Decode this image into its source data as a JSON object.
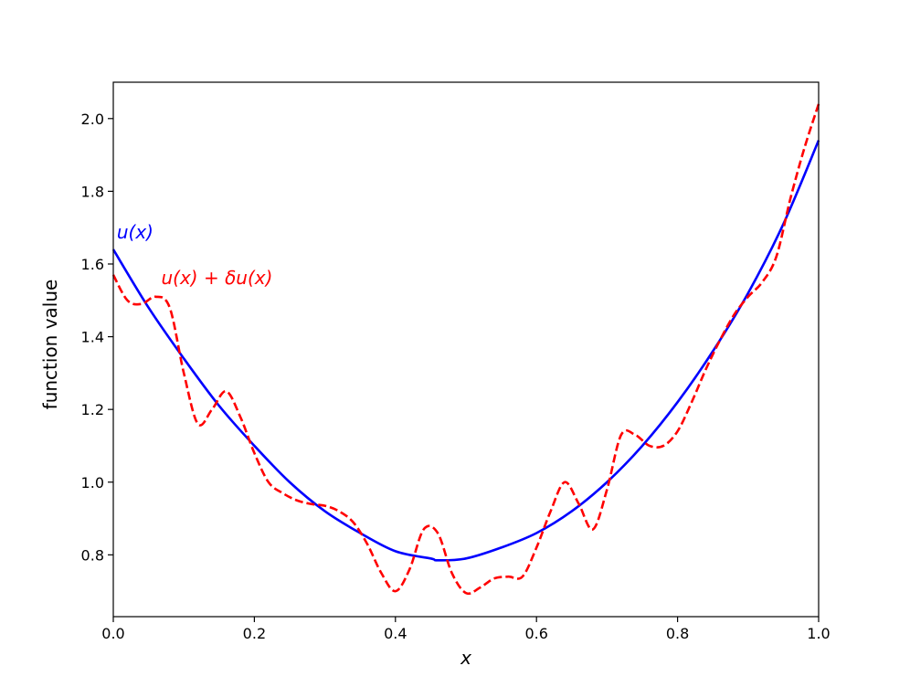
{
  "chart_data": {
    "type": "line",
    "title": "",
    "xlabel": "x",
    "ylabel": "function value",
    "xlim": [
      0.0,
      1.0
    ],
    "ylim": [
      0.63,
      2.1
    ],
    "x_ticks": [
      0.0,
      0.2,
      0.4,
      0.6,
      0.8,
      1.0
    ],
    "x_tick_labels": [
      "0.0",
      "0.2",
      "0.4",
      "0.6",
      "0.8",
      "1.0"
    ],
    "y_ticks": [
      0.8,
      1.0,
      1.2,
      1.4,
      1.6,
      1.8,
      2.0
    ],
    "y_tick_labels": [
      "0.8",
      "1.0",
      "1.2",
      "1.4",
      "1.6",
      "1.8",
      "2.0"
    ],
    "grid": false,
    "series": [
      {
        "name": "u(x)",
        "color": "#0000ff",
        "style": "solid",
        "x": [
          0.0,
          0.05,
          0.1,
          0.15,
          0.2,
          0.25,
          0.3,
          0.35,
          0.4,
          0.45,
          0.46,
          0.5,
          0.55,
          0.6,
          0.65,
          0.7,
          0.75,
          0.8,
          0.85,
          0.9,
          0.95,
          1.0
        ],
        "y": [
          1.64,
          1.48,
          1.34,
          1.21,
          1.1,
          1.0,
          0.92,
          0.86,
          0.81,
          0.79,
          0.785,
          0.79,
          0.82,
          0.86,
          0.92,
          1.0,
          1.1,
          1.22,
          1.36,
          1.52,
          1.71,
          1.94
        ]
      },
      {
        "name": "u(x) + δu(x)",
        "color": "#ff0000",
        "style": "dashed",
        "x": [
          0.0,
          0.02,
          0.04,
          0.06,
          0.08,
          0.1,
          0.12,
          0.14,
          0.16,
          0.18,
          0.2,
          0.22,
          0.24,
          0.26,
          0.28,
          0.3,
          0.32,
          0.34,
          0.36,
          0.38,
          0.4,
          0.42,
          0.44,
          0.46,
          0.48,
          0.5,
          0.52,
          0.54,
          0.56,
          0.58,
          0.6,
          0.62,
          0.64,
          0.66,
          0.68,
          0.7,
          0.72,
          0.74,
          0.76,
          0.78,
          0.8,
          0.82,
          0.84,
          0.86,
          0.88,
          0.9,
          0.92,
          0.94,
          0.96,
          0.98,
          1.0
        ],
        "y": [
          1.57,
          1.5,
          1.49,
          1.51,
          1.48,
          1.3,
          1.16,
          1.2,
          1.25,
          1.18,
          1.08,
          1.0,
          0.97,
          0.95,
          0.94,
          0.935,
          0.92,
          0.89,
          0.83,
          0.75,
          0.7,
          0.76,
          0.87,
          0.86,
          0.75,
          0.695,
          0.71,
          0.735,
          0.74,
          0.74,
          0.82,
          0.92,
          1.0,
          0.94,
          0.87,
          0.98,
          1.13,
          1.13,
          1.1,
          1.1,
          1.14,
          1.22,
          1.31,
          1.39,
          1.46,
          1.51,
          1.55,
          1.62,
          1.78,
          1.92,
          2.04
        ]
      }
    ],
    "annotations": [
      {
        "text": "u(x)",
        "color": "#0000ff",
        "x": 0.005,
        "y": 1.67
      },
      {
        "text": "u(x) + δu(x)",
        "color": "#ff0000",
        "x": 0.068,
        "y": 1.545
      }
    ]
  }
}
